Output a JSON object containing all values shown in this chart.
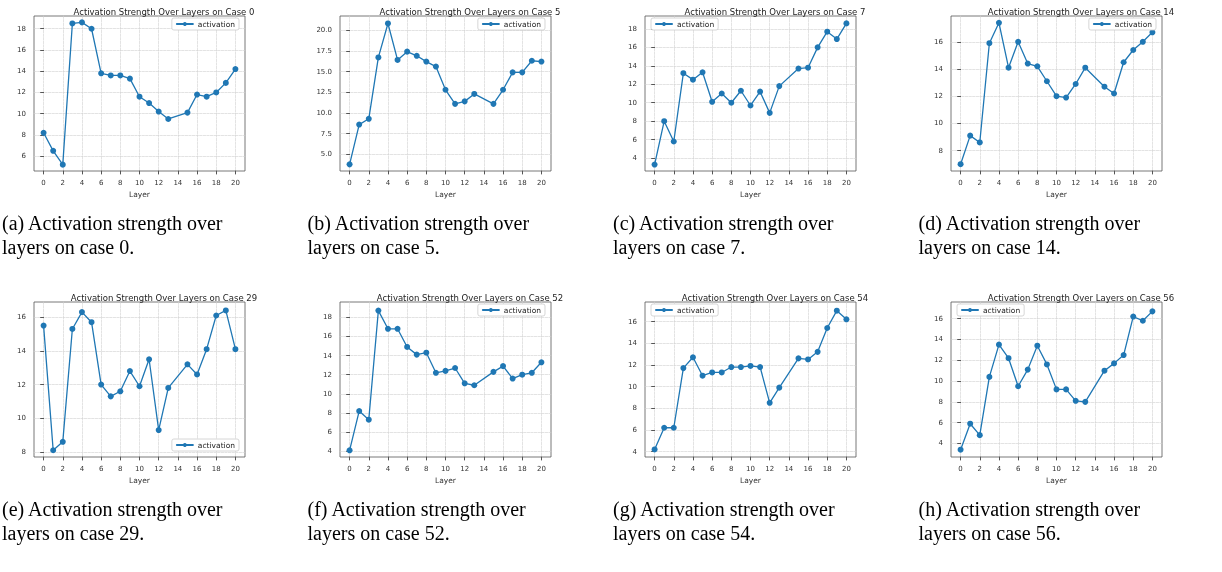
{
  "chart_data": [
    {
      "type": "line",
      "title": "Activation Strength Over Layers on Case 0",
      "xlabel": "Layer",
      "annotations": [
        "(a) Activation strength over layers on case 0."
      ],
      "x": [
        0,
        1,
        2,
        3,
        4,
        5,
        6,
        7,
        8,
        9,
        10,
        11,
        12,
        13,
        15,
        16,
        17,
        18,
        19,
        20
      ],
      "series": [
        {
          "name": "activation",
          "color": "#1f77b4",
          "values": [
            8.2,
            6.5,
            5.2,
            18.5,
            18.6,
            18.0,
            13.8,
            13.6,
            13.6,
            13.3,
            11.6,
            11.0,
            10.2,
            9.5,
            10.1,
            11.8,
            11.6,
            12.0,
            12.9,
            14.2
          ]
        }
      ],
      "xlim": [
        -1,
        21
      ],
      "xticks": [
        0,
        2,
        4,
        6,
        8,
        10,
        12,
        14,
        16,
        18,
        20
      ],
      "ylim": [
        4.6,
        19.2
      ],
      "yticks": [
        6,
        8,
        10,
        12,
        14,
        16,
        18
      ],
      "grid": true,
      "legend": "top right",
      "marker": "circle",
      "line_style": "solid"
    },
    {
      "type": "line",
      "title": "Activation Strength Over Layers on Case 5",
      "xlabel": "Layer",
      "annotations": [
        "(b) Activation strength over layers on case 5."
      ],
      "x": [
        0,
        1,
        2,
        3,
        4,
        5,
        6,
        7,
        8,
        9,
        10,
        11,
        12,
        13,
        15,
        16,
        17,
        18,
        19,
        20
      ],
      "series": [
        {
          "name": "activation",
          "color": "#1f77b4",
          "values": [
            3.8,
            8.6,
            9.3,
            16.7,
            20.8,
            16.4,
            17.4,
            16.9,
            16.2,
            15.6,
            12.8,
            11.1,
            11.4,
            12.3,
            11.1,
            12.8,
            14.9,
            14.9,
            16.3,
            16.2
          ]
        }
      ],
      "xlim": [
        -1,
        21
      ],
      "xticks": [
        0,
        2,
        4,
        6,
        8,
        10,
        12,
        14,
        16,
        18,
        20
      ],
      "ylim": [
        3.0,
        21.7
      ],
      "yticks": [
        {
          "value": 5,
          "label": "5.0"
        },
        7.5,
        {
          "value": 10,
          "label": "10.0"
        },
        12.5,
        {
          "value": 15,
          "label": "15.0"
        },
        17.5,
        {
          "value": 20,
          "label": "20.0"
        }
      ],
      "grid": true,
      "legend": "top right",
      "marker": "circle",
      "line_style": "solid"
    },
    {
      "type": "line",
      "title": "Activation Strength Over Layers on Case 7",
      "xlabel": "Layer",
      "annotations": [
        "(c) Activation strength over layers on case 7."
      ],
      "x": [
        0,
        1,
        2,
        3,
        4,
        5,
        6,
        7,
        8,
        9,
        10,
        11,
        12,
        13,
        15,
        16,
        17,
        18,
        19,
        20
      ],
      "series": [
        {
          "name": "activation",
          "color": "#1f77b4",
          "values": [
            3.3,
            8.0,
            5.8,
            13.2,
            12.5,
            13.3,
            10.1,
            11.0,
            10.0,
            11.3,
            9.7,
            11.2,
            8.9,
            11.8,
            13.7,
            13.8,
            16.0,
            17.7,
            16.9,
            18.6
          ]
        }
      ],
      "xlim": [
        -1,
        21
      ],
      "xticks": [
        0,
        2,
        4,
        6,
        8,
        10,
        12,
        14,
        16,
        18,
        20
      ],
      "ylim": [
        2.6,
        19.4
      ],
      "yticks": [
        4,
        6,
        8,
        10,
        12,
        14,
        16,
        18
      ],
      "grid": true,
      "legend": "top left",
      "marker": "circle",
      "line_style": "solid"
    },
    {
      "type": "line",
      "title": "Activation Strength Over Layers on Case 14",
      "xlabel": "Layer",
      "annotations": [
        "(d) Activation strength over layers on case 14."
      ],
      "x": [
        0,
        1,
        2,
        3,
        4,
        5,
        6,
        7,
        8,
        9,
        10,
        11,
        12,
        13,
        15,
        16,
        17,
        18,
        19,
        20
      ],
      "series": [
        {
          "name": "activation",
          "color": "#1f77b4",
          "values": [
            7.0,
            9.1,
            8.6,
            15.9,
            17.4,
            14.1,
            16.0,
            14.4,
            14.2,
            13.1,
            12.0,
            11.9,
            12.9,
            14.1,
            12.7,
            12.2,
            14.5,
            15.4,
            16.0,
            16.7
          ]
        }
      ],
      "xlim": [
        -1,
        21
      ],
      "xticks": [
        0,
        2,
        4,
        6,
        8,
        10,
        12,
        14,
        16,
        18,
        20
      ],
      "ylim": [
        6.5,
        17.9
      ],
      "yticks": [
        8,
        10,
        12,
        14,
        16
      ],
      "grid": true,
      "legend": "top right",
      "marker": "circle",
      "line_style": "solid"
    },
    {
      "type": "line",
      "title": "Activation Strength Over Layers on Case 29",
      "xlabel": "Layer",
      "annotations": [
        "(e) Activation strength over layers on case 29."
      ],
      "x": [
        0,
        1,
        2,
        3,
        4,
        5,
        6,
        7,
        8,
        9,
        10,
        11,
        12,
        13,
        15,
        16,
        17,
        18,
        19,
        20
      ],
      "series": [
        {
          "name": "activation",
          "color": "#1f77b4",
          "values": [
            15.5,
            8.1,
            8.6,
            15.3,
            16.3,
            15.7,
            12.0,
            11.3,
            11.6,
            12.8,
            11.9,
            13.5,
            9.3,
            11.8,
            13.2,
            12.6,
            14.1,
            16.1,
            16.4,
            14.1
          ]
        }
      ],
      "xlim": [
        -1,
        21
      ],
      "xticks": [
        0,
        2,
        4,
        6,
        8,
        10,
        12,
        14,
        16,
        18,
        20
      ],
      "ylim": [
        7.7,
        16.9
      ],
      "yticks": [
        8,
        10,
        12,
        14,
        16
      ],
      "grid": true,
      "legend": "bottom right",
      "marker": "circle",
      "line_style": "solid"
    },
    {
      "type": "line",
      "title": "Activation Strength Over Layers on Case 52",
      "xlabel": "Layer",
      "annotations": [
        "(f) Activation strength over layers on case 52."
      ],
      "x": [
        0,
        1,
        2,
        3,
        4,
        5,
        6,
        7,
        8,
        9,
        10,
        11,
        12,
        13,
        15,
        16,
        17,
        18,
        19,
        20
      ],
      "series": [
        {
          "name": "activation",
          "color": "#1f77b4",
          "values": [
            4.1,
            8.2,
            7.3,
            18.7,
            16.8,
            16.8,
            14.9,
            14.1,
            14.3,
            12.2,
            12.4,
            12.7,
            11.1,
            10.9,
            12.3,
            12.9,
            11.6,
            12.0,
            12.2,
            13.3
          ]
        }
      ],
      "xlim": [
        -1,
        21
      ],
      "xticks": [
        0,
        2,
        4,
        6,
        8,
        10,
        12,
        14,
        16,
        18,
        20
      ],
      "ylim": [
        3.4,
        19.6
      ],
      "yticks": [
        4,
        6,
        8,
        10,
        12,
        14,
        16,
        18
      ],
      "grid": true,
      "legend": "top right",
      "marker": "circle",
      "line_style": "solid"
    },
    {
      "type": "line",
      "title": "Activation Strength Over Layers on Case 54",
      "xlabel": "Layer",
      "annotations": [
        "(g) Activation strength over layers on case 54."
      ],
      "x": [
        0,
        1,
        2,
        3,
        4,
        5,
        6,
        7,
        8,
        9,
        10,
        11,
        12,
        13,
        15,
        16,
        17,
        18,
        19,
        20
      ],
      "series": [
        {
          "name": "activation",
          "color": "#1f77b4",
          "values": [
            4.2,
            6.2,
            6.2,
            11.7,
            12.7,
            11.0,
            11.3,
            11.3,
            11.8,
            11.8,
            11.9,
            11.8,
            8.5,
            9.9,
            12.6,
            12.5,
            13.2,
            15.4,
            17.0,
            16.2
          ]
        }
      ],
      "xlim": [
        -1,
        21
      ],
      "xticks": [
        0,
        2,
        4,
        6,
        8,
        10,
        12,
        14,
        16,
        18,
        20
      ],
      "ylim": [
        3.5,
        17.8
      ],
      "yticks": [
        4,
        6,
        8,
        10,
        12,
        14,
        16
      ],
      "grid": true,
      "legend": "top left",
      "marker": "circle",
      "line_style": "solid"
    },
    {
      "type": "line",
      "title": "Activation Strength Over Layers on Case 56",
      "xlabel": "Layer",
      "annotations": [
        "(h) Activation strength over layers on case 56."
      ],
      "x": [
        0,
        1,
        2,
        3,
        4,
        5,
        6,
        7,
        8,
        9,
        10,
        11,
        12,
        13,
        15,
        16,
        17,
        18,
        19,
        20
      ],
      "series": [
        {
          "name": "activation",
          "color": "#1f77b4",
          "values": [
            3.4,
            5.9,
            4.8,
            10.4,
            13.5,
            12.2,
            9.5,
            11.1,
            13.4,
            11.6,
            9.2,
            9.2,
            8.1,
            8.0,
            11.0,
            11.7,
            12.5,
            16.2,
            15.8,
            16.7
          ]
        }
      ],
      "xlim": [
        -1,
        21
      ],
      "xticks": [
        0,
        2,
        4,
        6,
        8,
        10,
        12,
        14,
        16,
        18,
        20
      ],
      "ylim": [
        2.7,
        17.6
      ],
      "yticks": [
        4,
        6,
        8,
        10,
        12,
        14,
        16
      ],
      "grid": true,
      "legend": "top left",
      "marker": "circle",
      "line_style": "solid"
    }
  ]
}
